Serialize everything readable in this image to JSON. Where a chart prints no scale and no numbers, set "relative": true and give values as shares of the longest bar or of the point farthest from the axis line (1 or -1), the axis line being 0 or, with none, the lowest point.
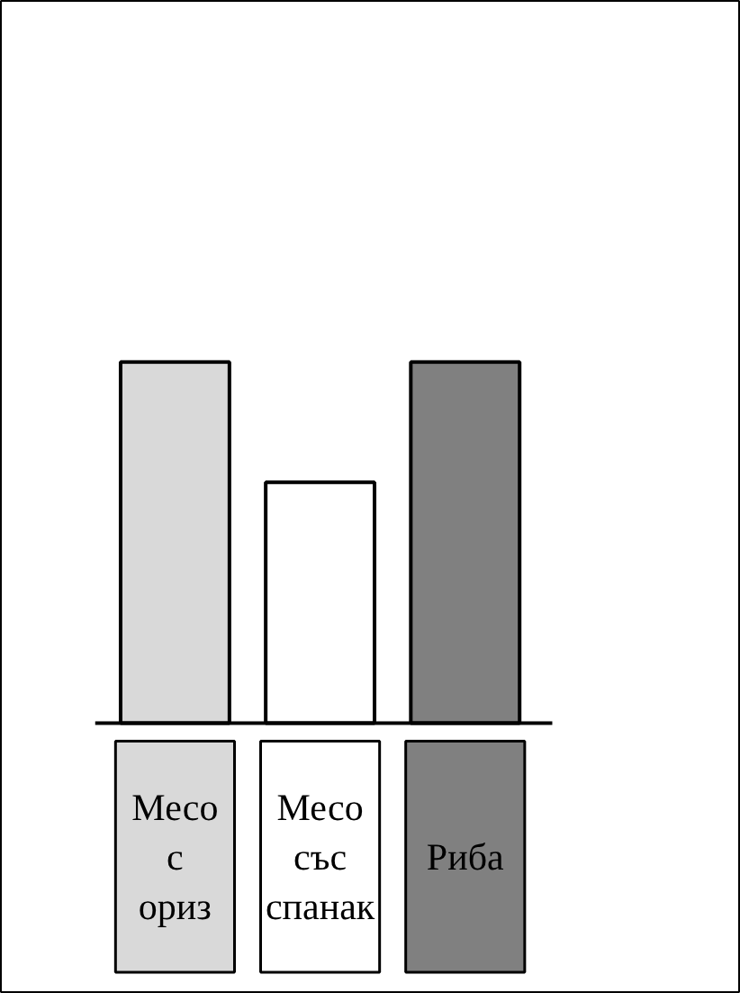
{
  "chart_data": {
    "type": "bar",
    "relative": true,
    "categories": [
      "Месо с ориз",
      "Месо със спанак",
      "Риба"
    ],
    "values": [
      1,
      0.667,
      1
    ],
    "colors": [
      "#d9d9d9",
      "#ffffff",
      "#808080"
    ]
  }
}
